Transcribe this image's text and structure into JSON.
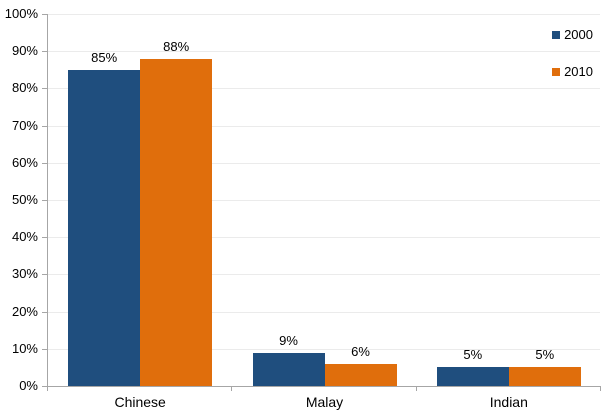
{
  "chart_data": {
    "type": "bar",
    "title": "",
    "xlabel": "",
    "ylabel": "",
    "categories": [
      "Chinese",
      "Malay",
      "Indian"
    ],
    "series": [
      {
        "name": "2000",
        "color": "#1f4e7e",
        "values": [
          85,
          9,
          5
        ],
        "value_labels": [
          "85%",
          "9%",
          "5%"
        ]
      },
      {
        "name": "2010",
        "color": "#e06e0c",
        "values": [
          88,
          6,
          5
        ],
        "value_labels": [
          "88%",
          "6%",
          "5%"
        ]
      }
    ],
    "ylim": [
      0,
      100
    ],
    "ytick_labels": [
      "0%",
      "10%",
      "20%",
      "30%",
      "40%",
      "50%",
      "60%",
      "70%",
      "80%",
      "90%",
      "100%"
    ],
    "grid": "horizontal",
    "legend_position": "top-right",
    "colors": {
      "axis": "#a6a6a6",
      "gridline": "#ebebeb",
      "text": "#000000",
      "background": "#ffffff"
    }
  }
}
